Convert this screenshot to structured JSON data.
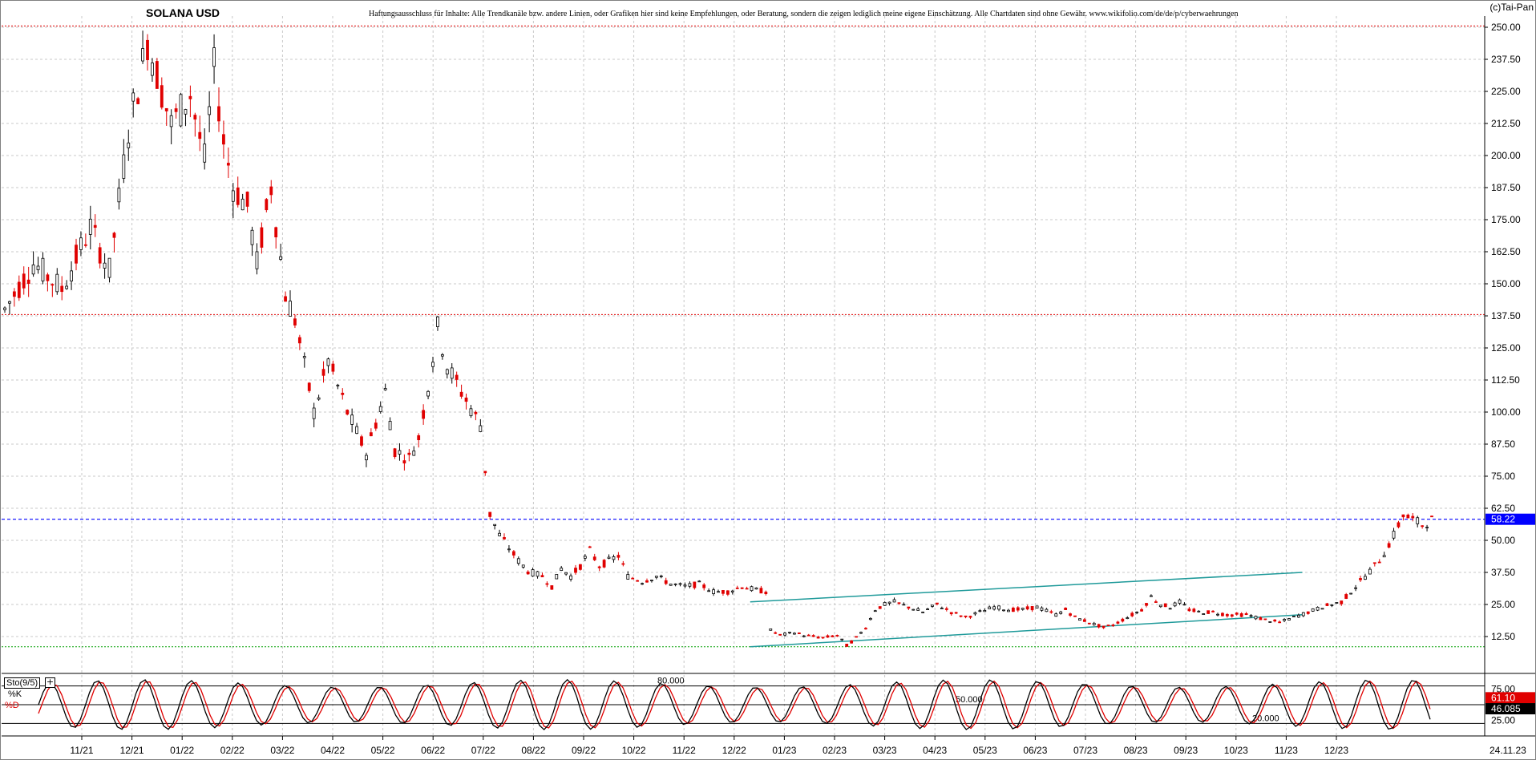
{
  "header": {
    "title": "SOLANA USD",
    "disclaimer": "Haftungsausschluss für Inhalte: Alle Trendkanäle bzw. andere Linien, oder Grafiken hier sind keine Empfehlungen, oder Beratung, sondern die zeigen lediglich meine eigene Einschätzung. Alle Chartdaten sind ohne Gewähr. www.wikifolio.com/de/de/p/cyberwaehrungen",
    "copyright": "(c)Tai-Pan"
  },
  "indicator": {
    "name": "Sto(9/5)",
    "k_label": "%K",
    "d_label": "%D"
  },
  "colors": {
    "up_candle": "#000000",
    "down_candle": "#e00000",
    "current_price_line": "#0000ff",
    "resistance_line": "#e00000",
    "support_line": "#00a000",
    "trend_channel": "#1f9a9a",
    "k_line": "#000000",
    "d_line": "#e00000"
  },
  "chart_data": [
    {
      "type": "candlestick",
      "title": "SOLANA USD",
      "y_range": [
        0,
        252
      ],
      "y_ticks": [
        "250.00",
        "237.50",
        "225.00",
        "212.50",
        "200.00",
        "187.50",
        "175.00",
        "162.50",
        "150.00",
        "137.50",
        "125.00",
        "112.50",
        "100.00",
        "87.50",
        "75.00",
        "62.50",
        "50.00",
        "37.50",
        "25.00",
        "12.50"
      ],
      "x_tick_labels": [
        "11/21",
        "12/21",
        "01/22",
        "02/22",
        "03/22",
        "04/22",
        "05/22",
        "06/22",
        "07/22",
        "08/22",
        "09/22",
        "10/22",
        "11/22",
        "12/22",
        "01/23",
        "02/23",
        "03/23",
        "04/23",
        "05/23",
        "06/23",
        "07/23",
        "08/23",
        "09/23",
        "10/23",
        "11/23",
        "12/23"
      ],
      "last_date_label": "24.11.23",
      "current_price": 58.22,
      "current_price_label": "58.22",
      "horizontal_lines": [
        {
          "value": 250.5,
          "style": "resistance"
        },
        {
          "value": 138.0,
          "style": "resistance"
        },
        {
          "value": 8.5,
          "style": "support"
        }
      ],
      "trend_channel": {
        "upper": {
          "from": [
            "12/22",
            26.0
          ],
          "to": [
            "11/23",
            37.5
          ]
        },
        "lower": {
          "from": [
            "12/22",
            8.5
          ],
          "to": [
            "11/23",
            21.0
          ]
        }
      },
      "price_path": [
        [
          0,
          140
        ],
        [
          6,
          158
        ],
        [
          12,
          148
        ],
        [
          18,
          172
        ],
        [
          22,
          155
        ],
        [
          26,
          210
        ],
        [
          30,
          245
        ],
        [
          32,
          232
        ],
        [
          35,
          212
        ],
        [
          39,
          224
        ],
        [
          42,
          198
        ],
        [
          44,
          234
        ],
        [
          46,
          206
        ],
        [
          48,
          188
        ],
        [
          51,
          180
        ],
        [
          53,
          158
        ],
        [
          56,
          188
        ],
        [
          59,
          146
        ],
        [
          61,
          136
        ],
        [
          65,
          100
        ],
        [
          68,
          120
        ],
        [
          72,
          100
        ],
        [
          76,
          84
        ],
        [
          80,
          108
        ],
        [
          82,
          85
        ],
        [
          85,
          82
        ],
        [
          87,
          90
        ],
        [
          89,
          110
        ],
        [
          91,
          133
        ],
        [
          93,
          118
        ],
        [
          96,
          108
        ],
        [
          99,
          98
        ],
        [
          100,
          95
        ],
        [
          102,
          60
        ],
        [
          104,
          52
        ],
        [
          106,
          47
        ],
        [
          108,
          42
        ],
        [
          110,
          38
        ],
        [
          113,
          36
        ],
        [
          115,
          32
        ],
        [
          117,
          39
        ],
        [
          119,
          36
        ],
        [
          121,
          40
        ],
        [
          123,
          46
        ],
        [
          125,
          40
        ],
        [
          127,
          42
        ],
        [
          129,
          44
        ],
        [
          131,
          36
        ],
        [
          134,
          34
        ],
        [
          137,
          36
        ],
        [
          140,
          33
        ],
        [
          143,
          32
        ],
        [
          146,
          33
        ],
        [
          149,
          30
        ],
        [
          152,
          30
        ],
        [
          155,
          32
        ],
        [
          157,
          31
        ],
        [
          160,
          30
        ],
        [
          161,
          15
        ],
        [
          163,
          13
        ],
        [
          166,
          14
        ],
        [
          168,
          13
        ],
        [
          172,
          12
        ],
        [
          175,
          13
        ],
        [
          177,
          9
        ],
        [
          179,
          12
        ],
        [
          181,
          16
        ],
        [
          183,
          23
        ],
        [
          185,
          25
        ],
        [
          187,
          26
        ],
        [
          190,
          24
        ],
        [
          193,
          22
        ],
        [
          196,
          25
        ],
        [
          199,
          22
        ],
        [
          202,
          20
        ],
        [
          205,
          22
        ],
        [
          208,
          24
        ],
        [
          211,
          23
        ],
        [
          214,
          23
        ],
        [
          217,
          24
        ],
        [
          221,
          21
        ],
        [
          223,
          23
        ],
        [
          225,
          20
        ],
        [
          228,
          18
        ],
        [
          231,
          16
        ],
        [
          233,
          17
        ],
        [
          235,
          19
        ],
        [
          237,
          21
        ],
        [
          239,
          23
        ],
        [
          241,
          28
        ],
        [
          243,
          25
        ],
        [
          245,
          24
        ],
        [
          247,
          26
        ],
        [
          249,
          23
        ],
        [
          251,
          22
        ],
        [
          254,
          22
        ],
        [
          257,
          21
        ],
        [
          261,
          21
        ],
        [
          265,
          19
        ],
        [
          268,
          18
        ],
        [
          271,
          20
        ],
        [
          274,
          22
        ],
        [
          277,
          24
        ],
        [
          281,
          26
        ],
        [
          283,
          30
        ],
        [
          286,
          36
        ],
        [
          288,
          40
        ],
        [
          290,
          45
        ],
        [
          292,
          52
        ],
        [
          294,
          60
        ],
        [
          296,
          58
        ],
        [
          298,
          56
        ],
        [
          300,
          58
        ]
      ]
    },
    {
      "type": "line",
      "title": "Sto(9/5)",
      "y_range": [
        0,
        100
      ],
      "y_ticks": [
        "75.00",
        "50.00",
        "25.00"
      ],
      "levels": [
        {
          "value": 80,
          "label": "80.000"
        },
        {
          "value": 50,
          "label": "50.000"
        },
        {
          "value": 20,
          "label": "20.000"
        }
      ],
      "series": [
        {
          "name": "%K",
          "last_value": 46.085,
          "last_label": "46.085"
        },
        {
          "name": "%D",
          "last_value": 61.1,
          "last_label": "61.10"
        }
      ]
    }
  ]
}
